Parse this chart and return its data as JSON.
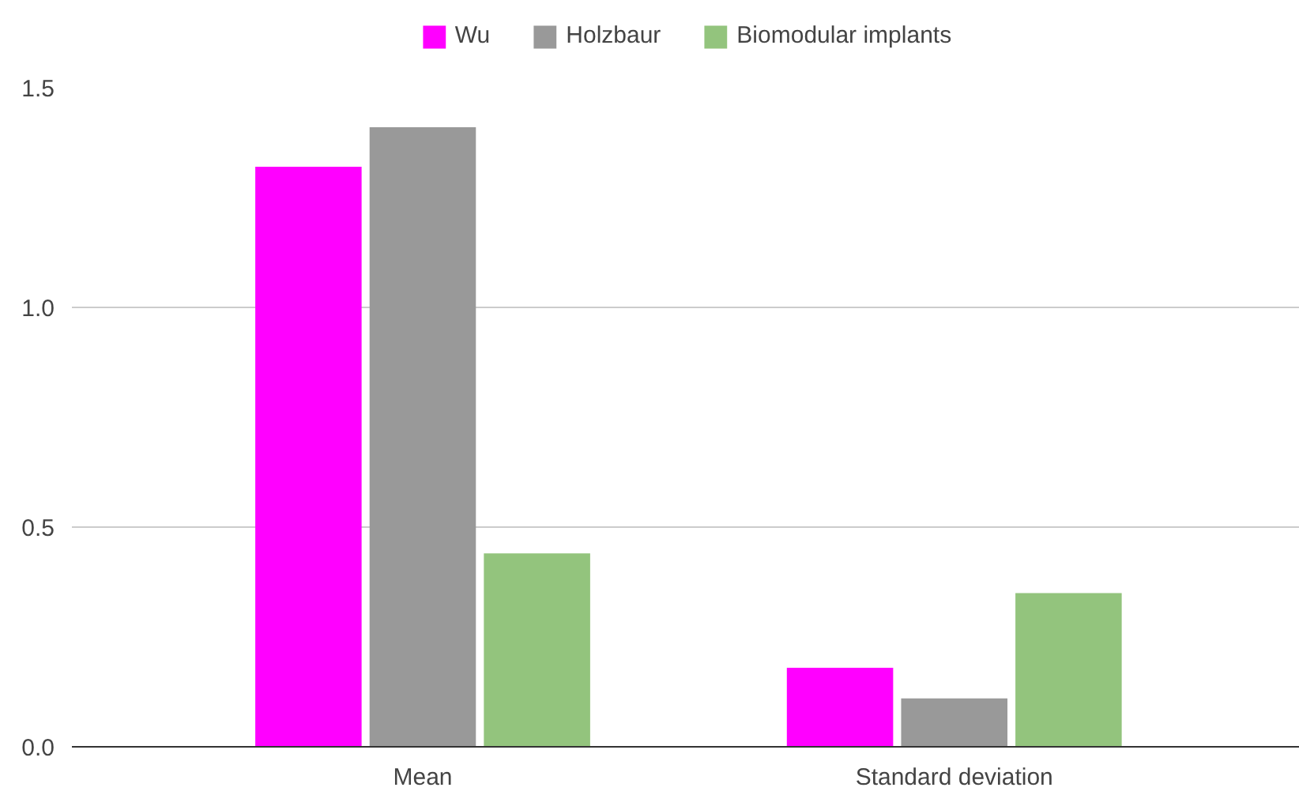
{
  "chart_data": {
    "type": "bar",
    "categories": [
      "Mean",
      "Standard deviation"
    ],
    "series": [
      {
        "name": "Wu",
        "color": "#ff00ff",
        "values": [
          1.32,
          0.18
        ]
      },
      {
        "name": "Holzbaur",
        "color": "#999999",
        "values": [
          1.41,
          0.11
        ]
      },
      {
        "name": "Biomodular implants",
        "color": "#93c47d",
        "values": [
          0.44,
          0.35
        ]
      }
    ],
    "ylim": [
      0,
      1.5
    ],
    "yticks": [
      {
        "value": 0,
        "label": "0.0"
      },
      {
        "value": 0.5,
        "label": "0.5"
      },
      {
        "value": 1,
        "label": "1.0"
      },
      {
        "value": 1.5,
        "label": "1.5"
      }
    ],
    "grid": "y",
    "legend": "top"
  }
}
